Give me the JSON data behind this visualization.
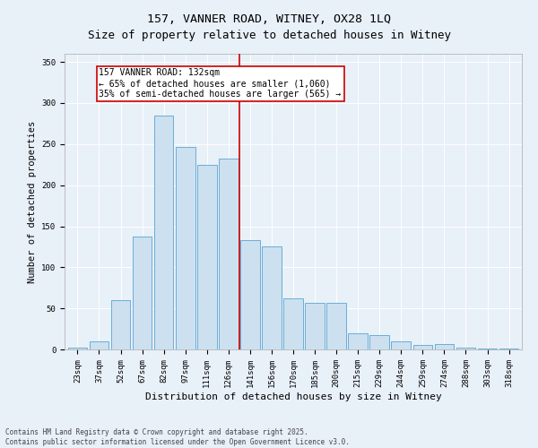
{
  "title": "157, VANNER ROAD, WITNEY, OX28 1LQ",
  "subtitle": "Size of property relative to detached houses in Witney",
  "xlabel": "Distribution of detached houses by size in Witney",
  "ylabel": "Number of detached properties",
  "bar_labels": [
    "23sqm",
    "37sqm",
    "52sqm",
    "67sqm",
    "82sqm",
    "97sqm",
    "111sqm",
    "126sqm",
    "141sqm",
    "156sqm",
    "170sqm",
    "185sqm",
    "200sqm",
    "215sqm",
    "229sqm",
    "244sqm",
    "259sqm",
    "274sqm",
    "288sqm",
    "303sqm",
    "318sqm"
  ],
  "bar_values": [
    2,
    10,
    60,
    137,
    285,
    247,
    225,
    232,
    133,
    126,
    62,
    57,
    57,
    20,
    18,
    10,
    5,
    7,
    2,
    1,
    1
  ],
  "bar_color": "#cce0f0",
  "bar_edge_color": "#6baed6",
  "vline_x": 7.5,
  "vline_color": "#cc0000",
  "annotation_line1": "157 VANNER ROAD: 132sqm",
  "annotation_line2": "← 65% of detached houses are smaller (1,060)",
  "annotation_line3": "35% of semi-detached houses are larger (565) →",
  "annotation_box_color": "#cc0000",
  "annotation_box_facecolor": "#ffffff",
  "ylim": [
    0,
    360
  ],
  "yticks": [
    0,
    50,
    100,
    150,
    200,
    250,
    300,
    350
  ],
  "background_color": "#e8f0f8",
  "plot_bg_color": "#e8f0f8",
  "footer_text": "Contains HM Land Registry data © Crown copyright and database right 2025.\nContains public sector information licensed under the Open Government Licence v3.0.",
  "title_fontsize": 9.5,
  "xlabel_fontsize": 8,
  "ylabel_fontsize": 7.5,
  "tick_fontsize": 6.5,
  "annotation_fontsize": 7,
  "footer_fontsize": 5.5
}
